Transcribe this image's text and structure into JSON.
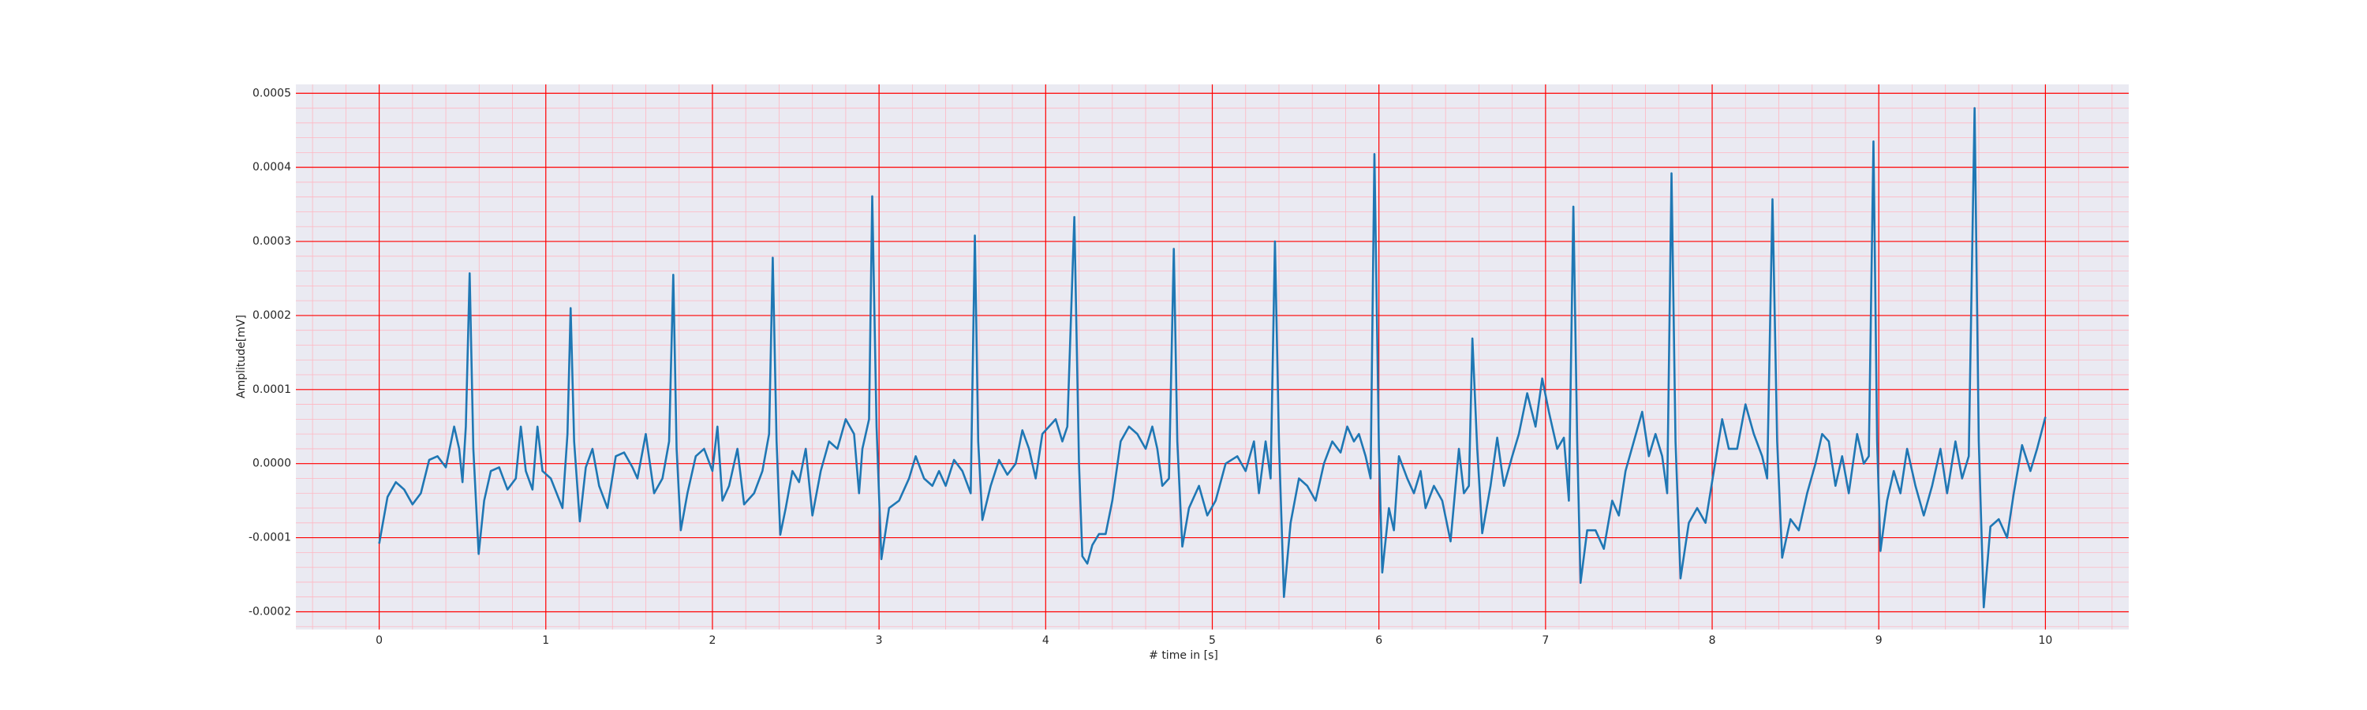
{
  "chart_data": {
    "type": "line",
    "xlabel": "# time in [s]",
    "ylabel": "Amplitude[mV]",
    "color": "#1f77b4",
    "grid": true,
    "grid_color": "#ff0000",
    "minor_grid": 5,
    "minor_grid_color": "#ffb6c1",
    "xlim": [
      -0.5,
      10.5
    ],
    "xticks": [
      0,
      1,
      2,
      3,
      4,
      5,
      6,
      7,
      8,
      9,
      10
    ],
    "ylim": [
      -0.000224,
      0.000512
    ],
    "yticks": [
      -0.0002,
      -0.0001,
      {
        "value": 0,
        "label": "0.0000"
      },
      0.0001,
      0.0002,
      0.0003,
      0.0004,
      0.0005
    ],
    "x": [
      0,
      0.05,
      0.1,
      0.15,
      0.2,
      0.25,
      0.3,
      0.35,
      0.4,
      0.45,
      0.48,
      0.5,
      0.52,
      0.543,
      0.565,
      0.597,
      0.63,
      0.67,
      0.72,
      0.77,
      0.82,
      0.85,
      0.88,
      0.92,
      0.95,
      0.98,
      1.03,
      1.1,
      1.13,
      1.149,
      1.17,
      1.204,
      1.24,
      1.28,
      1.32,
      1.37,
      1.42,
      1.47,
      1.52,
      1.55,
      1.6,
      1.65,
      1.7,
      1.74,
      1.765,
      1.785,
      1.81,
      1.85,
      1.9,
      1.95,
      2,
      2.03,
      2.06,
      2.1,
      2.15,
      2.19,
      2.25,
      2.3,
      2.34,
      2.362,
      2.385,
      2.407,
      2.44,
      2.48,
      2.52,
      2.56,
      2.6,
      2.65,
      2.7,
      2.75,
      2.8,
      2.85,
      2.88,
      2.9,
      2.94,
      2.959,
      2.985,
      3.014,
      3.06,
      3.12,
      3.18,
      3.22,
      3.27,
      3.32,
      3.36,
      3.4,
      3.45,
      3.5,
      3.55,
      3.575,
      3.595,
      3.62,
      3.67,
      3.72,
      3.77,
      3.82,
      3.86,
      3.9,
      3.94,
      3.98,
      4.02,
      4.06,
      4.1,
      4.13,
      4.172,
      4.2,
      4.22,
      4.25,
      4.28,
      4.32,
      4.36,
      4.4,
      4.45,
      4.5,
      4.55,
      4.6,
      4.64,
      4.67,
      4.7,
      4.74,
      4.769,
      4.79,
      4.82,
      4.86,
      4.92,
      4.97,
      5.02,
      5.08,
      5.15,
      5.2,
      5.25,
      5.28,
      5.32,
      5.35,
      5.376,
      5.4,
      5.43,
      5.47,
      5.52,
      5.57,
      5.62,
      5.67,
      5.72,
      5.77,
      5.81,
      5.85,
      5.88,
      5.92,
      5.95,
      5.973,
      6,
      6.02,
      6.06,
      6.09,
      6.12,
      6.17,
      6.21,
      6.25,
      6.28,
      6.33,
      6.38,
      6.43,
      6.48,
      6.51,
      6.54,
      6.561,
      6.59,
      6.62,
      6.67,
      6.71,
      6.75,
      6.8,
      6.84,
      6.89,
      6.94,
      6.98,
      7.02,
      7.07,
      7.11,
      7.14,
      7.167,
      7.19,
      7.21,
      7.25,
      7.3,
      7.35,
      7.4,
      7.44,
      7.48,
      7.53,
      7.58,
      7.62,
      7.66,
      7.7,
      7.73,
      7.756,
      7.78,
      7.81,
      7.86,
      7.91,
      7.96,
      8.01,
      8.06,
      8.1,
      8.15,
      8.2,
      8.25,
      8.3,
      8.33,
      8.362,
      8.39,
      8.42,
      8.47,
      8.52,
      8.57,
      8.62,
      8.66,
      8.7,
      8.74,
      8.78,
      8.82,
      8.87,
      8.91,
      8.94,
      8.968,
      8.99,
      9.01,
      9.05,
      9.09,
      9.13,
      9.17,
      9.22,
      9.27,
      9.32,
      9.37,
      9.41,
      9.46,
      9.5,
      9.54,
      9.575,
      9.6,
      9.63,
      9.67,
      9.72,
      9.77,
      9.81,
      9.86,
      9.91,
      9.95,
      10
    ],
    "values": [
      -0.000108,
      -4.5e-05,
      -2.5e-05,
      -3.5e-05,
      -5.5e-05,
      -4e-05,
      5e-06,
      1e-05,
      -5e-06,
      5e-05,
      2e-05,
      -2.5e-05,
      5e-05,
      0.000257,
      2e-05,
      -0.000122,
      -5e-05,
      -1e-05,
      -5e-06,
      -3.5e-05,
      -2e-05,
      5e-05,
      -1e-05,
      -3.5e-05,
      5e-05,
      -1e-05,
      -2e-05,
      -6e-05,
      4e-05,
      0.00021,
      3e-05,
      -7.8e-05,
      -5e-06,
      2e-05,
      -3e-05,
      -6e-05,
      1e-05,
      1.5e-05,
      -5e-06,
      -2e-05,
      4e-05,
      -4e-05,
      -2e-05,
      3e-05,
      0.000255,
      2e-05,
      -9e-05,
      -4e-05,
      1e-05,
      2e-05,
      -1e-05,
      5e-05,
      -5e-05,
      -3e-05,
      2e-05,
      -5.5e-05,
      -4e-05,
      -1e-05,
      4e-05,
      0.000278,
      3e-05,
      -9.6e-05,
      -6e-05,
      -1e-05,
      -2.5e-05,
      2e-05,
      -7e-05,
      -1e-05,
      3e-05,
      2e-05,
      6e-05,
      4e-05,
      -4e-05,
      2e-05,
      6e-05,
      0.000361,
      5e-05,
      -0.000129,
      -6e-05,
      -5e-05,
      -2e-05,
      1e-05,
      -2e-05,
      -3e-05,
      -1e-05,
      -3e-05,
      5e-06,
      -1e-05,
      -4e-05,
      0.000308,
      3e-05,
      -7.6e-05,
      -3e-05,
      5e-06,
      -1.5e-05,
      0,
      4.5e-05,
      2e-05,
      -2e-05,
      4e-05,
      5e-05,
      6e-05,
      3e-05,
      5e-05,
      0.000333,
      0,
      -0.000125,
      -0.000135,
      -0.00011,
      -9.5e-05,
      -9.5e-05,
      -5e-05,
      3e-05,
      5e-05,
      4e-05,
      2e-05,
      5e-05,
      2e-05,
      -3e-05,
      -2e-05,
      0.00029,
      3e-05,
      -0.000112,
      -6e-05,
      -3e-05,
      -7e-05,
      -5e-05,
      0,
      1e-05,
      -1e-05,
      3e-05,
      -4e-05,
      3e-05,
      -2e-05,
      0.0003,
      3e-05,
      -0.00018,
      -8e-05,
      -2e-05,
      -3e-05,
      -5e-05,
      0,
      3e-05,
      1.5e-05,
      5e-05,
      3e-05,
      4e-05,
      1e-05,
      -2e-05,
      0.000418,
      2e-05,
      -0.000147,
      -6e-05,
      -9e-05,
      1e-05,
      -2e-05,
      -4e-05,
      -1e-05,
      -6e-05,
      -3e-05,
      -5e-05,
      -0.000105,
      2e-05,
      -4e-05,
      -3e-05,
      0.000169,
      2e-05,
      -9.4e-05,
      -3e-05,
      3.5e-05,
      -3e-05,
      1e-05,
      4e-05,
      9.5e-05,
      5e-05,
      0.000115,
      7e-05,
      2e-05,
      3.5e-05,
      -5e-05,
      0.000347,
      3e-05,
      -0.000161,
      -9e-05,
      -9e-05,
      -0.000115,
      -5e-05,
      -7e-05,
      -1e-05,
      3e-05,
      7e-05,
      1e-05,
      4e-05,
      1e-05,
      -4e-05,
      0.000392,
      3e-05,
      -0.000155,
      -8e-05,
      -6e-05,
      -8e-05,
      -1e-05,
      6e-05,
      2e-05,
      2e-05,
      8e-05,
      4e-05,
      1e-05,
      -2e-05,
      0.000357,
      3e-05,
      -0.000127,
      -7.5e-05,
      -9e-05,
      -4e-05,
      0,
      4e-05,
      3e-05,
      -3e-05,
      1e-05,
      -4e-05,
      4e-05,
      0,
      1e-05,
      0.000435,
      3e-05,
      -0.000118,
      -5e-05,
      -1e-05,
      -4e-05,
      2e-05,
      -3e-05,
      -7e-05,
      -3e-05,
      2e-05,
      -4e-05,
      3e-05,
      -2e-05,
      1e-05,
      0.00048,
      3e-05,
      -0.000194,
      -8.5e-05,
      -7.5e-05,
      -0.0001,
      -4e-05,
      2.5e-05,
      -1e-05,
      2e-05,
      6.3e-05
    ]
  }
}
